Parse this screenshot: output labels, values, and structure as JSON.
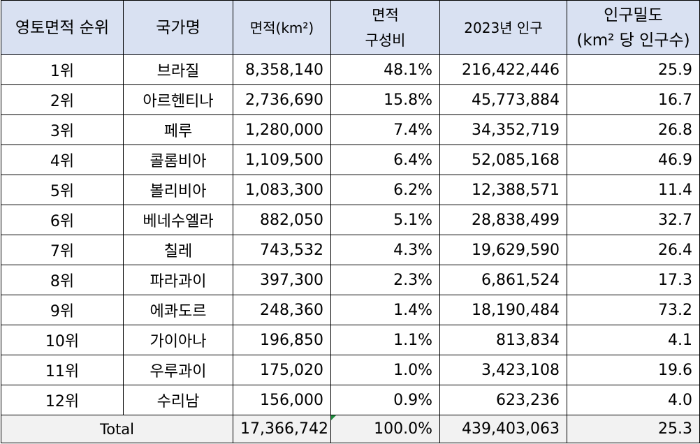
{
  "headers": {
    "rank": "영토면적 순위",
    "country": "국가명",
    "area": "면적(km²)",
    "share_line1": "면적",
    "share_line2": "구성비",
    "population": "2023년 인구",
    "density_line1": "인구밀도",
    "density_line2": "(km² 당 인구수)"
  },
  "rows": [
    {
      "rank": "1위",
      "country": "브라질",
      "area": "8,358,140",
      "share": "48.1%",
      "population": "216,422,446",
      "density": "25.9"
    },
    {
      "rank": "2위",
      "country": "아르헨티나",
      "area": "2,736,690",
      "share": "15.8%",
      "population": "45,773,884",
      "density": "16.7"
    },
    {
      "rank": "3위",
      "country": "페루",
      "area": "1,280,000",
      "share": "7.4%",
      "population": "34,352,719",
      "density": "26.8"
    },
    {
      "rank": "4위",
      "country": "콜롬비아",
      "area": "1,109,500",
      "share": "6.4%",
      "population": "52,085,168",
      "density": "46.9"
    },
    {
      "rank": "5위",
      "country": "볼리비아",
      "area": "1,083,300",
      "share": "6.2%",
      "population": "12,388,571",
      "density": "11.4"
    },
    {
      "rank": "6위",
      "country": "베네수엘라",
      "area": "882,050",
      "share": "5.1%",
      "population": "28,838,499",
      "density": "32.7"
    },
    {
      "rank": "7위",
      "country": "칠레",
      "area": "743,532",
      "share": "4.3%",
      "population": "19,629,590",
      "density": "26.4"
    },
    {
      "rank": "8위",
      "country": "파라과이",
      "area": "397,300",
      "share": "2.3%",
      "population": "6,861,524",
      "density": "17.3"
    },
    {
      "rank": "9위",
      "country": "에콰도르",
      "area": "248,360",
      "share": "1.4%",
      "population": "18,190,484",
      "density": "73.2"
    },
    {
      "rank": "10위",
      "country": "가이아나",
      "area": "196,850",
      "share": "1.1%",
      "population": "813,834",
      "density": "4.1"
    },
    {
      "rank": "11위",
      "country": "우루과이",
      "area": "175,020",
      "share": "1.0%",
      "population": "3,423,108",
      "density": "19.6"
    },
    {
      "rank": "12위",
      "country": "수리남",
      "area": "156,000",
      "share": "0.9%",
      "population": "623,236",
      "density": "4.0"
    }
  ],
  "total": {
    "label": "Total",
    "area": "17,366,742",
    "share": "100.0%",
    "population": "439,403,063",
    "density": "25.3"
  },
  "colors": {
    "header_fill": "#d9e1f2",
    "total_fill": "#f2f2f2",
    "error_indicator": "#1e8a3c"
  }
}
